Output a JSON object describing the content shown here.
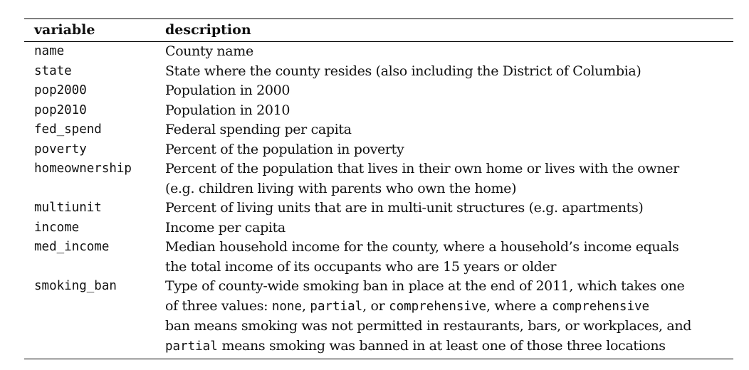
{
  "table": {
    "headers": {
      "variable": "variable",
      "description": "description"
    },
    "rows": [
      {
        "variable": "name",
        "lines": [
          [
            "County name"
          ]
        ]
      },
      {
        "variable": "state",
        "lines": [
          [
            "State where the county resides (also including the District of Columbia)"
          ]
        ]
      },
      {
        "variable": "pop2000",
        "lines": [
          [
            "Population in 2000"
          ]
        ]
      },
      {
        "variable": "pop2010",
        "lines": [
          [
            "Population in 2010"
          ]
        ]
      },
      {
        "variable": "fed_spend",
        "lines": [
          [
            "Federal spending per capita"
          ]
        ]
      },
      {
        "variable": "poverty",
        "lines": [
          [
            "Percent of the population in poverty"
          ]
        ]
      },
      {
        "variable": "homeownership",
        "lines": [
          [
            "Percent of the population that lives in their own home or lives with the owner"
          ],
          [
            "(e.g. children living with parents who own the home)"
          ]
        ]
      },
      {
        "variable": "multiunit",
        "lines": [
          [
            "Percent of living units that are in multi-unit structures (e.g. apartments)"
          ]
        ]
      },
      {
        "variable": "income",
        "lines": [
          [
            "Income per capita"
          ]
        ]
      },
      {
        "variable": "med_income",
        "lines": [
          [
            "Median household income for the county, where a household’s income equals"
          ],
          [
            "the total income of its occupants who are 15 years or older"
          ]
        ]
      },
      {
        "variable": "smoking_ban",
        "lines": [
          [
            "Type of county-wide smoking ban in place at the end of 2011, which takes one"
          ],
          [
            "of three values: ",
            {
              "code": "none"
            },
            ", ",
            {
              "code": "partial"
            },
            ", or ",
            {
              "code": "comprehensive"
            },
            ", where a ",
            {
              "code": "comprehensive"
            }
          ],
          [
            "ban means smoking was not permitted in restaurants, bars, or workplaces, and"
          ],
          [
            {
              "code": "partial"
            },
            " means smoking was banned in at least one of those three locations"
          ]
        ]
      }
    ]
  }
}
